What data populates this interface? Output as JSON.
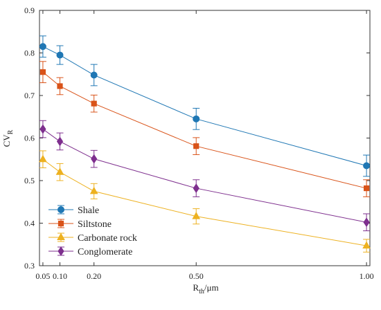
{
  "chart_data": {
    "type": "line",
    "x": [
      0.05,
      0.1,
      0.2,
      0.5,
      1.0
    ],
    "x_tick_labels": [
      "0.05",
      "0.10",
      "0.20",
      "0.50",
      "1.00"
    ],
    "xlim": [
      0.04,
      1.01
    ],
    "ylim": [
      0.3,
      0.9
    ],
    "y_ticks": [
      0.3,
      0.4,
      0.5,
      0.6,
      0.7,
      0.8,
      0.9
    ],
    "y_tick_labels": [
      "0.3",
      "0.4",
      "0.5",
      "0.6",
      "0.7",
      "0.8",
      "0.9"
    ],
    "xlabel_main": "R",
    "xlabel_sub": "th",
    "xlabel_unit": "/μm",
    "ylabel_main": "CV",
    "ylabel_sub": "R",
    "grid": false,
    "legend_position": "bottom-left",
    "error_bars": true,
    "series": [
      {
        "name": "Shale",
        "color": "#1f77b4",
        "marker": "circle",
        "values": [
          0.815,
          0.795,
          0.748,
          0.645,
          0.535
        ],
        "errors": [
          0.025,
          0.022,
          0.025,
          0.025,
          0.025
        ]
      },
      {
        "name": "Siltstone",
        "color": "#d95319",
        "marker": "square",
        "values": [
          0.755,
          0.722,
          0.681,
          0.581,
          0.482
        ],
        "errors": [
          0.025,
          0.02,
          0.02,
          0.02,
          0.02
        ]
      },
      {
        "name": "Carbonate rock",
        "color": "#edb120",
        "marker": "triangle",
        "values": [
          0.55,
          0.52,
          0.475,
          0.416,
          0.347
        ],
        "errors": [
          0.02,
          0.02,
          0.018,
          0.018,
          0.015
        ]
      },
      {
        "name": "Conglomerate",
        "color": "#7e2f8e",
        "marker": "diamond",
        "values": [
          0.621,
          0.592,
          0.551,
          0.482,
          0.402
        ],
        "errors": [
          0.02,
          0.02,
          0.02,
          0.02,
          0.02
        ]
      }
    ]
  }
}
